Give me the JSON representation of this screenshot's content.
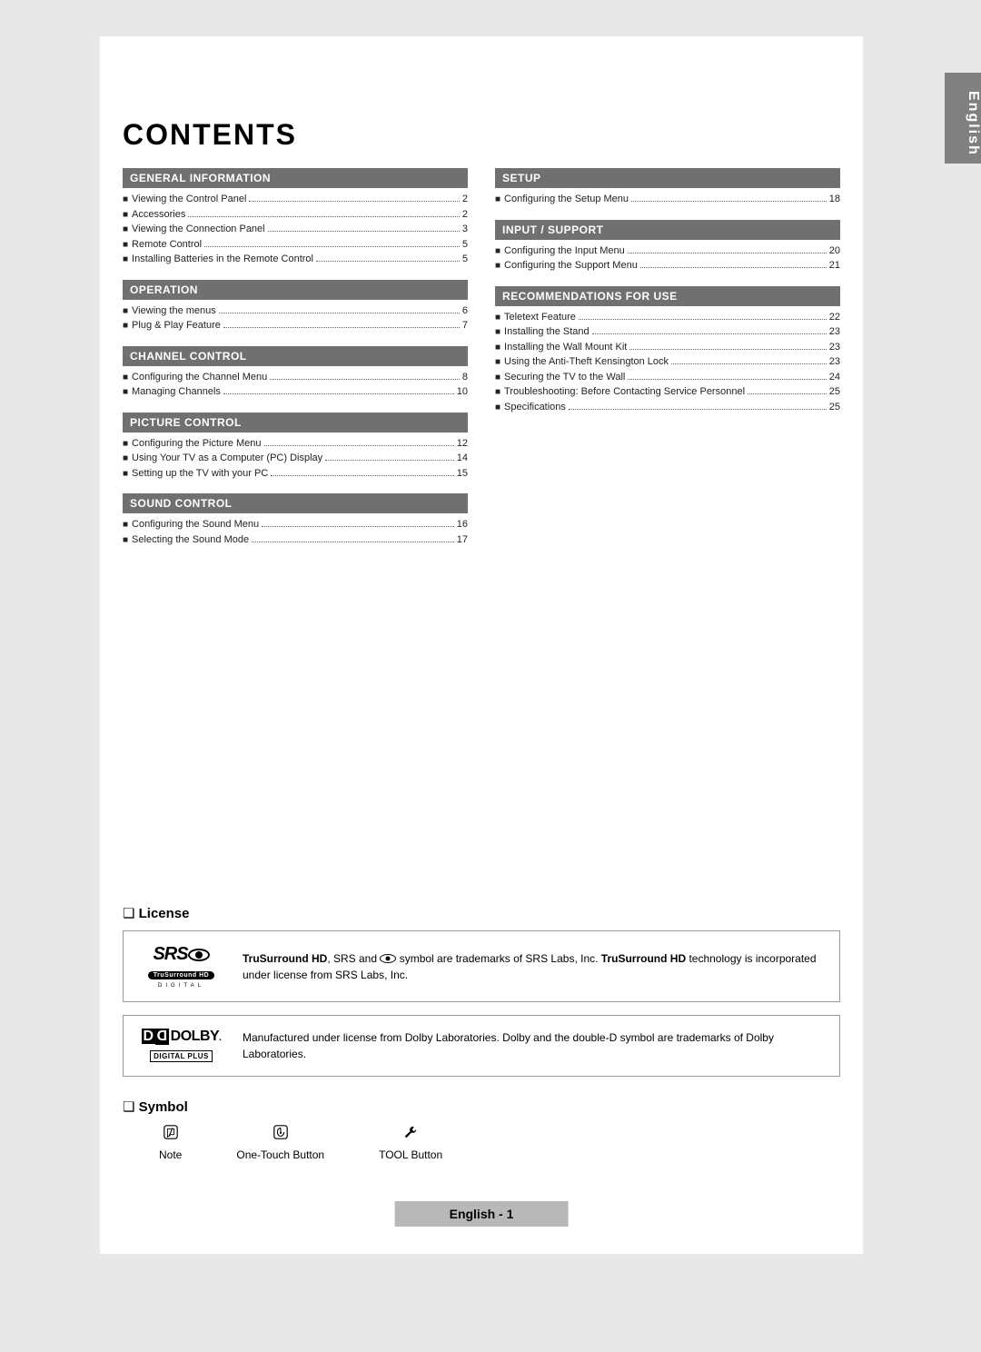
{
  "sideTab": "English",
  "title": "CONTENTS",
  "sections": {
    "left": [
      {
        "header": "GENERAL INFORMATION",
        "items": [
          {
            "label": "Viewing the Control Panel",
            "page": "2"
          },
          {
            "label": "Accessories",
            "page": "2"
          },
          {
            "label": "Viewing the Connection Panel",
            "page": "3"
          },
          {
            "label": "Remote Control",
            "page": "5"
          },
          {
            "label": "Installing Batteries in the Remote Control",
            "page": "5"
          }
        ]
      },
      {
        "header": "OPERATION",
        "items": [
          {
            "label": "Viewing the menus",
            "page": "6"
          },
          {
            "label": "Plug & Play Feature",
            "page": "7"
          }
        ]
      },
      {
        "header": "CHANNEL CONTROL",
        "items": [
          {
            "label": "Configuring the Channel Menu",
            "page": "8"
          },
          {
            "label": "Managing Channels",
            "page": "10"
          }
        ]
      },
      {
        "header": "PICTURE CONTROL",
        "items": [
          {
            "label": "Configuring the Picture Menu",
            "page": "12"
          },
          {
            "label": "Using Your TV as a Computer (PC) Display",
            "page": "14"
          },
          {
            "label": "Setting up the TV with your PC",
            "page": "15"
          }
        ]
      },
      {
        "header": "SOUND CONTROL",
        "items": [
          {
            "label": "Configuring the Sound Menu",
            "page": "16"
          },
          {
            "label": "Selecting the Sound Mode",
            "page": "17"
          }
        ]
      }
    ],
    "right": [
      {
        "header": "SETUP",
        "items": [
          {
            "label": "Configuring the Setup Menu",
            "page": "18"
          }
        ]
      },
      {
        "header": "INPUT / SUPPORT",
        "items": [
          {
            "label": "Configuring the Input Menu",
            "page": "20"
          },
          {
            "label": "Configuring the Support Menu",
            "page": "21"
          }
        ]
      },
      {
        "header": "RECOMMENDATIONS FOR USE",
        "items": [
          {
            "label": "Teletext Feature",
            "page": "22"
          },
          {
            "label": "Installing the Stand",
            "page": "23"
          },
          {
            "label": "Installing the Wall Mount Kit",
            "page": "23"
          },
          {
            "label": "Using the Anti-Theft Kensington Lock",
            "page": "23"
          },
          {
            "label": "Securing the TV to the Wall",
            "page": "24"
          },
          {
            "label": "Troubleshooting: Before Contacting Service Personnel",
            "page": "25"
          },
          {
            "label": "Specifications",
            "page": "25"
          }
        ]
      }
    ]
  },
  "license": {
    "heading": "License",
    "srs": {
      "logo": "SRS",
      "sub": "TruSurround HD",
      "digital": "DIGITAL",
      "text_pre": "TruSurround HD",
      "text_mid": ", SRS and ",
      "text_mid2": " symbol are trademarks of SRS Labs, Inc. ",
      "text_bold2": "TruSurround HD",
      "text_end": " technology is incorporated under license from SRS Labs, Inc."
    },
    "dolby": {
      "logo": "DOLBY",
      "sub": "DIGITAL PLUS",
      "text": "Manufactured under license from Dolby Laboratories. Dolby and the double-D symbol are trademarks of Dolby Laboratories."
    }
  },
  "symbol": {
    "heading": "Symbol",
    "items": [
      {
        "icon": "note",
        "label": "Note"
      },
      {
        "icon": "onetouch",
        "label": "One-Touch Button"
      },
      {
        "icon": "tool",
        "label": "TOOL Button"
      }
    ]
  },
  "footer": "English - 1"
}
